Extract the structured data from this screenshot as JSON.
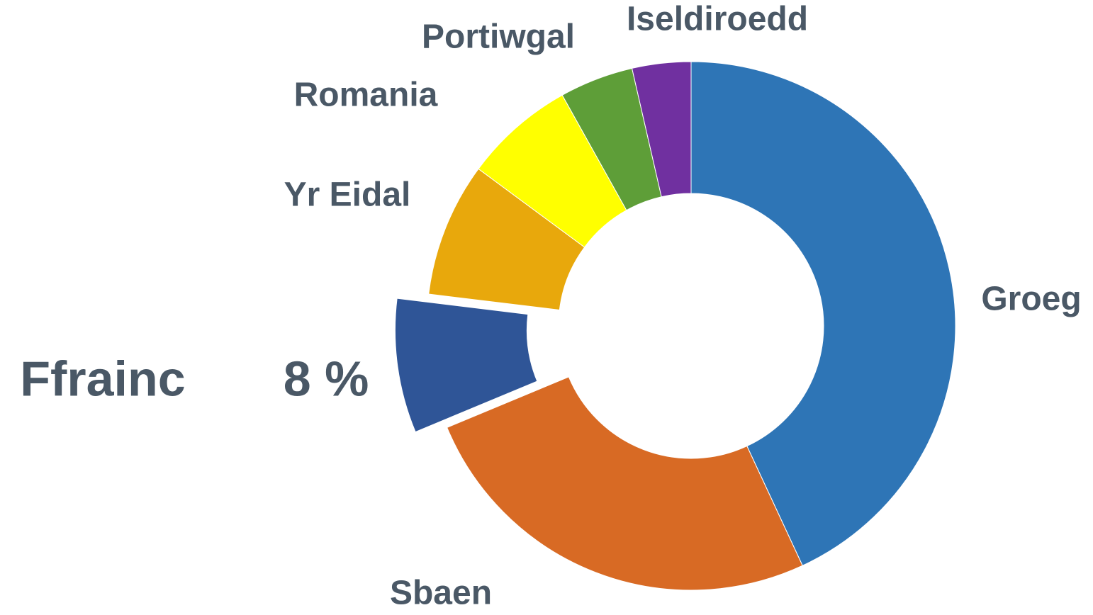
{
  "chart_data": {
    "type": "donut",
    "categories": [
      "Groeg",
      "Sbaen",
      "Ffrainc",
      "Yr Eidal",
      "Romania",
      "Portiwgal",
      "Iseldiroedd"
    ],
    "values": [
      42,
      25,
      8,
      8,
      6.6,
      4.4,
      3.5
    ],
    "value_labels": [
      null,
      null,
      "8 %",
      null,
      null,
      null,
      null
    ],
    "colors": [
      "#2e75b6",
      "#d86a24",
      "#2f5597",
      "#e8a80c",
      "#ffff00",
      "#5e9e38",
      "#7030a0"
    ],
    "exploded": "Ffrainc"
  }
}
